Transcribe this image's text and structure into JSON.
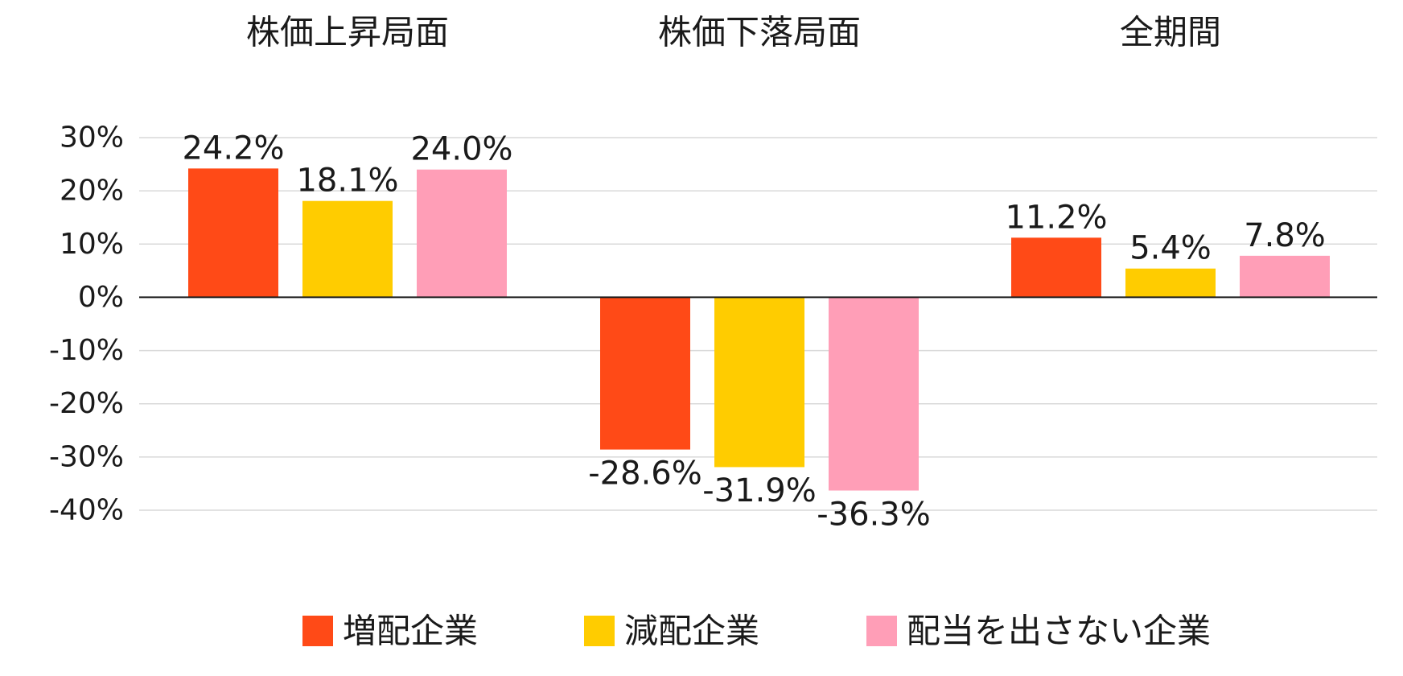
{
  "chart_data": {
    "type": "bar",
    "categories": [
      "株価上昇局面",
      "株価下落局面",
      "全期間"
    ],
    "series": [
      {
        "name": "増配企業",
        "values": [
          24.2,
          -28.6,
          11.2
        ],
        "color": "#ff4a17"
      },
      {
        "name": "減配企業",
        "values": [
          18.1,
          -31.9,
          5.4
        ],
        "color": "#ffcc00"
      },
      {
        "name": "配当を出さない企業",
        "values": [
          24.0,
          -36.3,
          7.8
        ],
        "color": "#ff9eb7"
      }
    ],
    "data_labels": [
      [
        "24.2%",
        "-28.6%",
        "11.2%"
      ],
      [
        "18.1%",
        "-31.9%",
        "5.4%"
      ],
      [
        "24.0%",
        "-36.3%",
        "7.8%"
      ]
    ],
    "ylim": [
      -40,
      30
    ],
    "yticks": [
      30,
      20,
      10,
      0,
      -10,
      -20,
      -30,
      -40
    ],
    "ytick_labels": [
      "30%",
      "20%",
      "10%",
      "0%",
      "-10%",
      "-20%",
      "-30%",
      "-40%"
    ],
    "category_labels_position": "top",
    "grid": true,
    "legend": "bottom"
  }
}
